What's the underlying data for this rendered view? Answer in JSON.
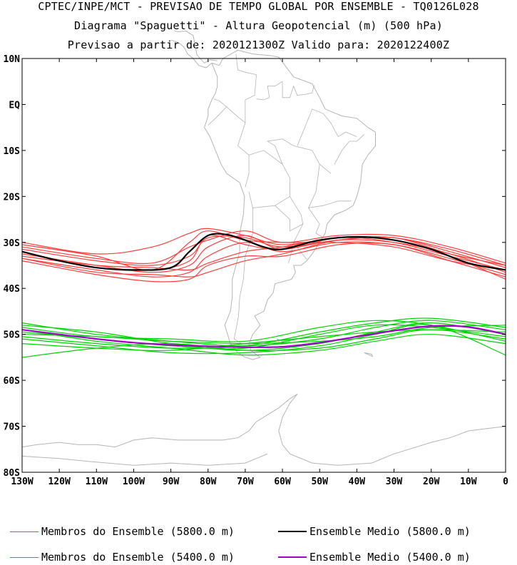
{
  "header": {
    "line1": "CPTEC/INPE/MCT - PREVISAO DE TEMPO GLOBAL POR ENSEMBLE - TQ0126L028",
    "line2": "Diagrama \"Spaguetti\" - Altura Geopotencial (m) (500 hPa)",
    "line3": "Previsao a partir de: 2020121300Z  Valido para: 2020122400Z"
  },
  "map": {
    "region": "South America and adjacent South Pacific / South Atlantic",
    "lat_labels": [
      "10N",
      "EQ",
      "10S",
      "20S",
      "30S",
      "40S",
      "50S",
      "60S",
      "70S",
      "80S"
    ],
    "lat_values": [
      10,
      0,
      -10,
      -20,
      -30,
      -40,
      -50,
      -60,
      -70,
      -80
    ],
    "lon_labels": [
      "130W",
      "120W",
      "110W",
      "100W",
      "90W",
      "80W",
      "70W",
      "60W",
      "50W",
      "40W",
      "30W",
      "20W",
      "10W",
      "0"
    ],
    "lon_values": [
      -130,
      -120,
      -110,
      -100,
      -90,
      -80,
      -70,
      -60,
      -50,
      -40,
      -30,
      -20,
      -10,
      0
    ],
    "lon_range": [
      -130,
      0
    ],
    "lat_range": [
      -80,
      10
    ],
    "coastline_color": "#b4b4b4"
  },
  "chart_data": {
    "type": "line",
    "x_label": "",
    "y_label": "",
    "series": [
      {
        "name": "Ensemble Medio (5800.0 m)",
        "color": "#000000",
        "x": [
          -130,
          -120,
          -110,
          -100,
          -90,
          -85,
          -80,
          -75,
          -70,
          -65,
          -60,
          -50,
          -40,
          -30,
          -20,
          -10,
          0
        ],
        "y": [
          -32.0,
          -34.0,
          -35.5,
          -36.0,
          -35.5,
          -32.0,
          -28.5,
          -28.3,
          -29.5,
          -31.0,
          -31.5,
          -29.5,
          -28.8,
          -29.5,
          -31.5,
          -34.5,
          -36.0
        ]
      },
      {
        "name": "Ensemble Medio (5400.0 m)",
        "color": "#a000c8",
        "x": [
          -130,
          -120,
          -110,
          -100,
          -90,
          -80,
          -70,
          -60,
          -50,
          -40,
          -30,
          -20,
          -10,
          0
        ],
        "y": [
          -49.0,
          -50.0,
          -51.0,
          -51.8,
          -52.3,
          -52.6,
          -52.8,
          -52.7,
          -51.8,
          -50.5,
          -49.2,
          -48.2,
          -48.4,
          -50.0
        ]
      }
    ],
    "members_5800": [
      {
        "x": [
          -130,
          -110,
          -95,
          -85,
          -80,
          -70,
          -60,
          -45,
          -30,
          -15,
          0
        ],
        "y": [
          -30.0,
          -32.5,
          -31.0,
          -28.0,
          -27.0,
          -28.5,
          -30.5,
          -29.0,
          -29.0,
          -31.5,
          -35.0
        ]
      },
      {
        "x": [
          -130,
          -110,
          -95,
          -85,
          -80,
          -70,
          -60,
          -45,
          -30,
          -15,
          0
        ],
        "y": [
          -31.5,
          -34.0,
          -35.0,
          -33.0,
          -29.0,
          -29.0,
          -31.0,
          -29.5,
          -29.0,
          -32.0,
          -35.5
        ]
      },
      {
        "x": [
          -130,
          -110,
          -95,
          -85,
          -80,
          -70,
          -60,
          -45,
          -30,
          -15,
          0
        ],
        "y": [
          -32.5,
          -35.0,
          -36.5,
          -35.0,
          -31.0,
          -28.5,
          -31.5,
          -29.0,
          -30.0,
          -33.0,
          -36.0
        ]
      },
      {
        "x": [
          -130,
          -110,
          -95,
          -85,
          -80,
          -70,
          -60,
          -45,
          -30,
          -15,
          0
        ],
        "y": [
          -33.5,
          -36.0,
          -37.5,
          -36.5,
          -33.0,
          -30.0,
          -32.0,
          -30.0,
          -30.5,
          -33.5,
          -37.0
        ]
      },
      {
        "x": [
          -130,
          -110,
          -95,
          -85,
          -80,
          -70,
          -60,
          -45,
          -30,
          -15,
          0
        ],
        "y": [
          -34.0,
          -37.0,
          -38.5,
          -38.0,
          -35.0,
          -33.0,
          -33.0,
          -30.5,
          -30.5,
          -34.0,
          -37.5
        ]
      },
      {
        "x": [
          -130,
          -110,
          -95,
          -85,
          -80,
          -70,
          -60,
          -45,
          -30,
          -15,
          0
        ],
        "y": [
          -31.0,
          -33.5,
          -34.5,
          -31.0,
          -29.5,
          -27.5,
          -30.0,
          -28.5,
          -28.5,
          -31.0,
          -34.5
        ]
      },
      {
        "x": [
          -130,
          -110,
          -95,
          -85,
          -80,
          -70,
          -60,
          -45,
          -30,
          -15,
          0
        ],
        "y": [
          -32.0,
          -35.5,
          -36.0,
          -34.0,
          -28.5,
          -30.5,
          -31.5,
          -29.5,
          -30.0,
          -32.5,
          -36.5
        ]
      },
      {
        "x": [
          -130,
          -110,
          -95,
          -85,
          -80,
          -70,
          -60,
          -45,
          -30,
          -15,
          0
        ],
        "y": [
          -33.0,
          -35.0,
          -35.5,
          -36.0,
          -34.5,
          -32.0,
          -31.0,
          -29.0,
          -29.5,
          -33.0,
          -38.0
        ]
      },
      {
        "x": [
          -130,
          -110,
          -95,
          -85,
          -80,
          -70,
          -60,
          -45,
          -30,
          -15,
          0
        ],
        "y": [
          -30.5,
          -33.0,
          -36.0,
          -30.0,
          -27.5,
          -29.5,
          -30.0,
          -30.0,
          -31.0,
          -34.0,
          -36.0
        ]
      },
      {
        "x": [
          -130,
          -110,
          -95,
          -85,
          -80,
          -70,
          -60,
          -45,
          -30,
          -15,
          0
        ],
        "y": [
          -33.5,
          -36.5,
          -37.0,
          -37.5,
          -36.5,
          -34.0,
          -32.5,
          -29.5,
          -29.0,
          -32.5,
          -35.0
        ]
      }
    ],
    "members_5400": [
      {
        "x": [
          -130,
          -110,
          -90,
          -70,
          -50,
          -35,
          -20,
          0
        ],
        "y": [
          -47.5,
          -50.0,
          -51.5,
          -52.5,
          -51.0,
          -48.5,
          -47.0,
          -49.0
        ]
      },
      {
        "x": [
          -130,
          -110,
          -90,
          -70,
          -50,
          -35,
          -20,
          0
        ],
        "y": [
          -48.0,
          -49.5,
          -52.0,
          -53.5,
          -52.0,
          -49.5,
          -47.5,
          -50.0
        ]
      },
      {
        "x": [
          -130,
          -110,
          -90,
          -70,
          -50,
          -35,
          -20,
          0
        ],
        "y": [
          -49.5,
          -51.0,
          -52.5,
          -53.0,
          -50.0,
          -48.0,
          -48.5,
          -50.5
        ]
      },
      {
        "x": [
          -130,
          -110,
          -90,
          -70,
          -50,
          -35,
          -20,
          0
        ],
        "y": [
          -50.5,
          -52.0,
          -53.0,
          -52.5,
          -49.5,
          -47.5,
          -46.5,
          -48.5
        ]
      },
      {
        "x": [
          -130,
          -110,
          -90,
          -70,
          -50,
          -35,
          -20,
          0
        ],
        "y": [
          -55.0,
          -53.0,
          -52.0,
          -53.5,
          -53.0,
          -51.0,
          -49.0,
          -51.0
        ]
      },
      {
        "x": [
          -130,
          -110,
          -90,
          -70,
          -50,
          -35,
          -20,
          0
        ],
        "y": [
          -51.0,
          -52.5,
          -54.0,
          -54.0,
          -52.5,
          -50.0,
          -48.0,
          -54.5
        ]
      },
      {
        "x": [
          -130,
          -110,
          -90,
          -70,
          -50,
          -35,
          -20,
          0
        ],
        "y": [
          -48.5,
          -50.5,
          -51.0,
          -51.5,
          -48.5,
          -47.0,
          -48.0,
          -51.5
        ]
      },
      {
        "x": [
          -130,
          -110,
          -90,
          -70,
          -50,
          -35,
          -20,
          0
        ],
        "y": [
          -52.0,
          -53.0,
          -53.5,
          -52.0,
          -50.5,
          -49.5,
          -49.0,
          -49.5
        ]
      },
      {
        "x": [
          -130,
          -110,
          -90,
          -70,
          -50,
          -35,
          -20,
          0
        ],
        "y": [
          -49.0,
          -51.5,
          -53.0,
          -54.5,
          -53.5,
          -51.5,
          -50.0,
          -52.0
        ]
      },
      {
        "x": [
          -130,
          -110,
          -90,
          -70,
          -50,
          -35,
          -20,
          0
        ],
        "y": [
          -50.0,
          -50.5,
          -51.5,
          -52.0,
          -51.5,
          -50.5,
          -48.5,
          -48.0
        ]
      }
    ],
    "member_color_5800": "#ff3c3c",
    "member_color_5400": "#00d200"
  },
  "legend": {
    "members_5800": {
      "label": "Membros do Ensemble (5800.0 m)",
      "color": "#ff3c3c"
    },
    "mean_5800": {
      "label": "Ensemble Medio (5800.0 m)",
      "color": "#000000"
    },
    "members_5400": {
      "label": "Membros do Ensemble (5400.0 m)",
      "color": "#00d200"
    },
    "mean_5400": {
      "label": "Ensemble Medio (5400.0 m)",
      "color": "#a000c8"
    }
  }
}
